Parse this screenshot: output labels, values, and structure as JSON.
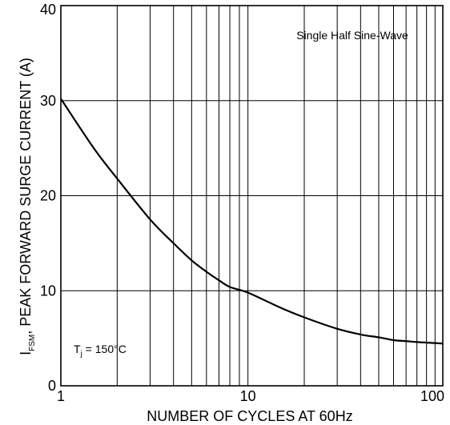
{
  "chart_data": {
    "type": "line",
    "xlabel": "NUMBER OF CYCLES AT 60Hz",
    "ylabel_main": "I",
    "ylabel_sub": "FSM",
    "ylabel_rest": ", PEAK FORWARD SURGE CURRENT (A)",
    "xscale": "log",
    "xlim": [
      1,
      110
    ],
    "ylim": [
      0,
      40
    ],
    "grid": true,
    "x_tick_labels": [
      {
        "value": 1,
        "label": "1"
      },
      {
        "value": 10,
        "label": "10"
      },
      {
        "value": 100,
        "label": "100"
      }
    ],
    "y_tick_labels": [
      {
        "value": 0,
        "label": "0"
      },
      {
        "value": 10,
        "label": "10"
      },
      {
        "value": 20,
        "label": "20"
      },
      {
        "value": 30,
        "label": "30"
      },
      {
        "value": 40,
        "label": "40"
      }
    ],
    "x_grid_values": [
      1,
      2,
      3,
      4,
      5,
      6,
      7,
      8,
      9,
      10,
      20,
      30,
      40,
      50,
      60,
      70,
      80,
      90,
      100
    ],
    "y_grid_values": [
      0,
      10,
      20,
      30,
      40
    ],
    "series": [
      {
        "x": [
          1,
          1.5,
          2,
          3,
          4,
          5,
          6,
          7,
          8,
          10,
          15,
          20,
          30,
          40,
          50,
          60,
          70,
          80,
          100,
          110
        ],
        "y": [
          30.2,
          25.0,
          21.8,
          17.5,
          15.0,
          13.2,
          12.0,
          11.1,
          10.4,
          9.8,
          8.2,
          7.2,
          6.0,
          5.4,
          5.1,
          4.8,
          4.7,
          4.6,
          4.5,
          4.45
        ]
      }
    ],
    "annotations": {
      "waveform": "Single Half Sine-Wave",
      "temp_main": "T",
      "temp_sub": "j",
      "temp_rest": " = 150°C"
    }
  }
}
